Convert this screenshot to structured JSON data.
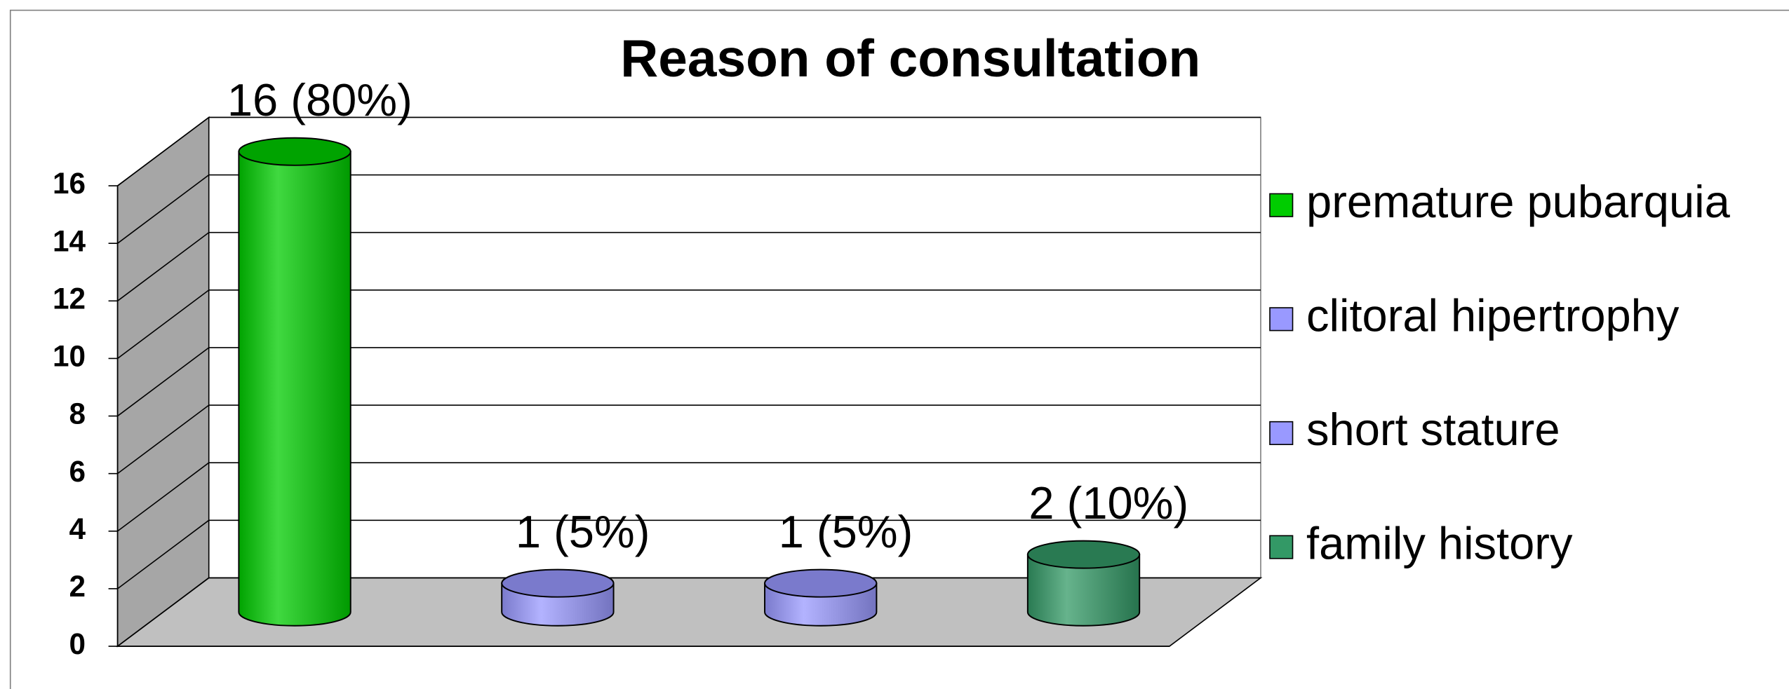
{
  "chart_data": {
    "type": "bar3d-cylinder",
    "title": "Reason of consultation",
    "series": [
      {
        "name": "premature pubarquia",
        "color": "#00cc00",
        "values": [
          16
        ],
        "value_labels": [
          "16 (80%)"
        ]
      },
      {
        "name": "clitoral hipertrophy",
        "color": "#9999ff",
        "values": [
          1
        ],
        "value_labels": [
          "1 (5%)"
        ]
      },
      {
        "name": "short stature",
        "color": "#9999ff",
        "values": [
          1
        ],
        "value_labels": [
          "1 (5%)"
        ]
      },
      {
        "name": "family history",
        "color": "#339966",
        "values": [
          2
        ],
        "value_labels": [
          "2 (10%)"
        ]
      }
    ],
    "ylim": [
      0,
      16
    ],
    "yticks": [
      0,
      2,
      4,
      6,
      8,
      10,
      12,
      14,
      16
    ],
    "grid": true,
    "legend": "right"
  }
}
